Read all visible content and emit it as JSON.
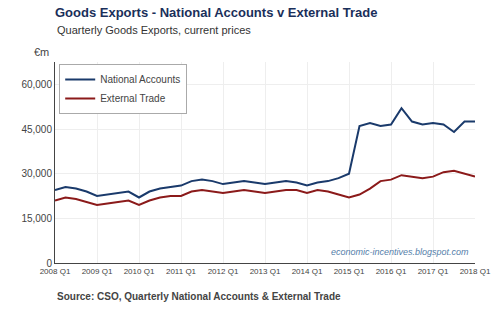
{
  "chart_data": {
    "type": "line",
    "title": "Goods Exports - National Accounts v External Trade",
    "subtitle": "Quarterly Goods Exports, current prices",
    "ylabel": "€m",
    "annotations": [
      "Source: CSO, Quarterly National Accounts & External Trade",
      "economic-incentives.blogspot.com"
    ],
    "categories": [
      "2008 Q1",
      null,
      null,
      null,
      "2009 Q1",
      null,
      null,
      null,
      "2010 Q1",
      null,
      null,
      null,
      "2011 Q1",
      null,
      null,
      null,
      "2012 Q1",
      null,
      null,
      null,
      "2013 Q1",
      null,
      null,
      null,
      "2014 Q1",
      null,
      null,
      null,
      "2015 Q1",
      null,
      null,
      null,
      "2016 Q1",
      null,
      null,
      null,
      "2017 Q1",
      null,
      null,
      null,
      "2018 Q1"
    ],
    "series": [
      {
        "name": "National Accounts",
        "color": "#1a3a6b",
        "values": [
          24500,
          25500,
          25000,
          24000,
          22500,
          23000,
          23500,
          24000,
          22000,
          24000,
          25000,
          25500,
          26000,
          27500,
          28000,
          27500,
          26500,
          27000,
          27500,
          27000,
          26500,
          27000,
          27500,
          27000,
          26000,
          27000,
          27500,
          28500,
          30000,
          46000,
          47000,
          46000,
          46500,
          52000,
          47500,
          46500,
          47000,
          46500,
          44000,
          47500,
          47500
        ]
      },
      {
        "name": "External Trade",
        "color": "#8b1a1a",
        "values": [
          21000,
          22000,
          21500,
          20500,
          19500,
          20000,
          20500,
          21000,
          19500,
          21000,
          22000,
          22500,
          22500,
          24000,
          24500,
          24000,
          23500,
          24000,
          24500,
          24000,
          23500,
          24000,
          24500,
          24500,
          23500,
          24500,
          24000,
          23000,
          22000,
          23000,
          25000,
          27500,
          28000,
          29500,
          29000,
          28500,
          29000,
          30500,
          31000,
          30000,
          29000
        ]
      }
    ],
    "ylim": [
      0,
      67500
    ],
    "yticks": [
      0,
      {
        "value": 15000,
        "label": "15,000"
      },
      {
        "value": 30000,
        "label": "30,000"
      },
      {
        "value": 45000,
        "label": "45,000"
      },
      {
        "value": 60000,
        "label": "60,000"
      }
    ],
    "grid": true,
    "legend": "upper left"
  }
}
